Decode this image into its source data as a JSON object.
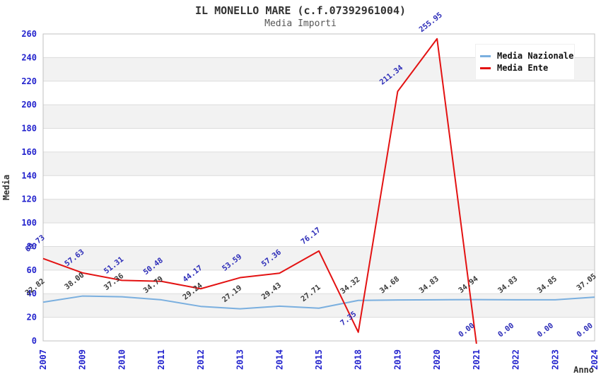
{
  "chart_data": {
    "type": "line",
    "title": "IL MONELLO MARE (c.f.07392961004)",
    "subtitle": "Media Importi",
    "xlabel": "Anno",
    "ylabel": "Media",
    "categories": [
      "2007",
      "2009",
      "2010",
      "2011",
      "2012",
      "2013",
      "2014",
      "2015",
      "2018",
      "2019",
      "2020",
      "2021",
      "2022",
      "2023",
      "2024"
    ],
    "series": [
      {
        "name": "Media Nazionale",
        "color": "#7aafdf",
        "label_color": "#3a3a3a",
        "values": [
          32.82,
          38.0,
          37.36,
          34.79,
          29.24,
          27.19,
          29.43,
          27.71,
          34.32,
          34.68,
          34.83,
          34.94,
          34.83,
          34.85,
          37.05
        ]
      },
      {
        "name": "Media Ente",
        "color": "#e31212",
        "label_color": "#2c2cb8",
        "values": [
          69.73,
          57.63,
          51.31,
          50.48,
          44.17,
          53.59,
          57.36,
          76.17,
          7.35,
          211.34,
          255.95,
          0.0,
          0.0,
          0.0,
          0.0
        ]
      }
    ],
    "ylim": [
      0,
      260
    ],
    "ytick_step": 20,
    "grid": "horizontal-bands",
    "legend_position": "top-right",
    "colors": {
      "tick_label": "#2323cd",
      "band_fill": "#f2f2f2",
      "gridline": "#dcdcdc",
      "axis_border": "#c0c0c0",
      "title": "#333333",
      "subtitle": "#565656"
    }
  }
}
